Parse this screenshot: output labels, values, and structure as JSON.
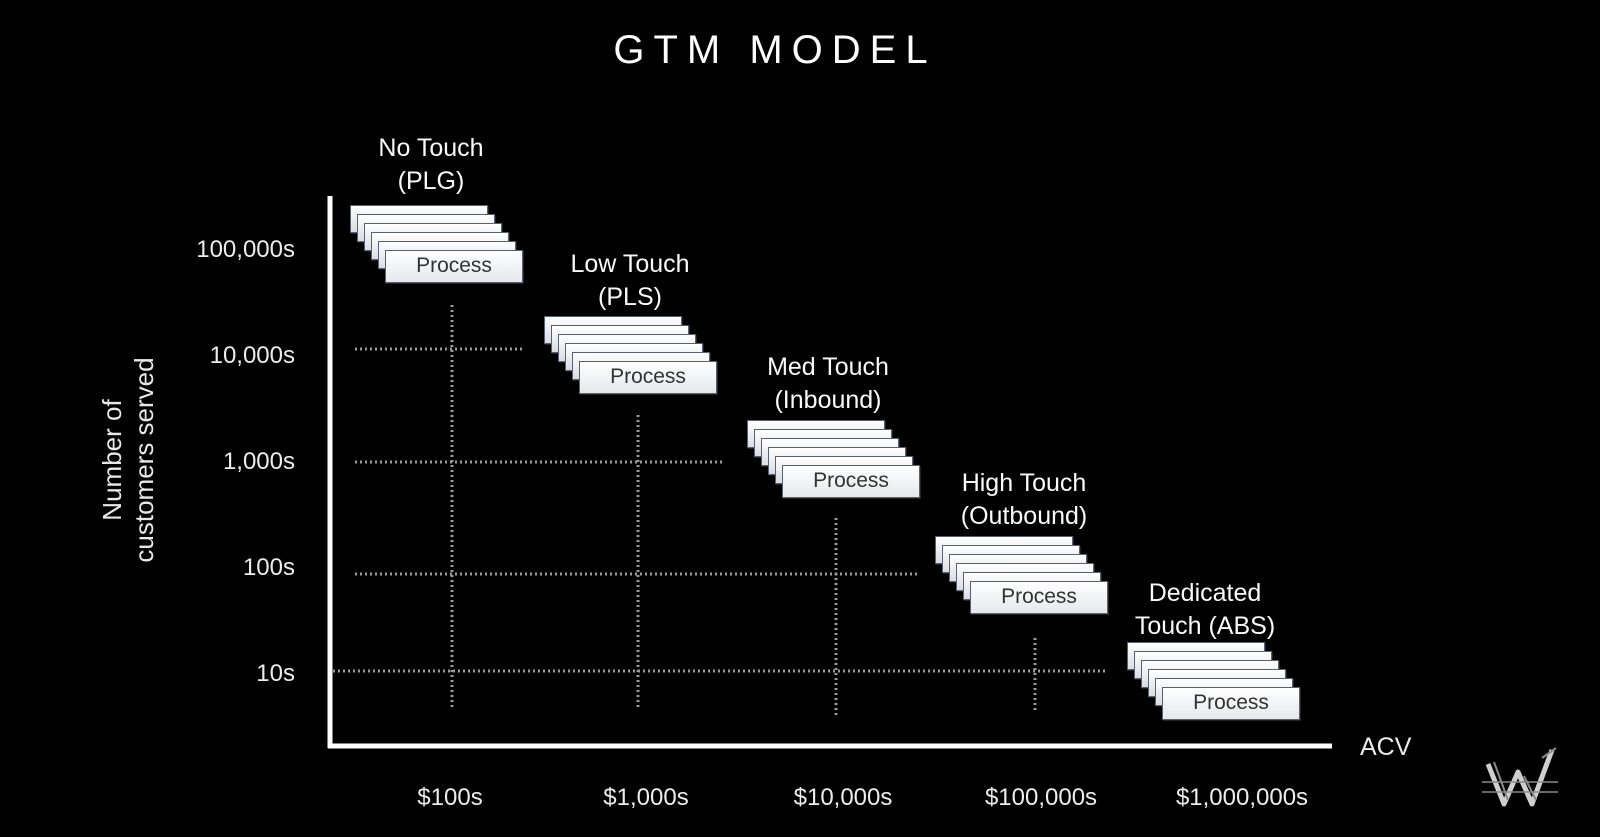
{
  "title": "GTM MODEL",
  "y_axis": {
    "label_line1": "Number of",
    "label_line2": "customers served",
    "ticks": [
      "100,000s",
      "10,000s",
      "1,000s",
      "100s",
      "10s"
    ]
  },
  "x_axis": {
    "label": "ACV",
    "ticks": [
      "$100s",
      "$1,000s",
      "$10,000s",
      "$100,000s",
      "$1,000,000s"
    ]
  },
  "tiers": [
    {
      "line1": "No Touch",
      "line2": "(PLG)",
      "card_label": "Process"
    },
    {
      "line1": "Low Touch",
      "line2": "(PLS)",
      "card_label": "Process"
    },
    {
      "line1": "Med Touch",
      "line2": "(Inbound)",
      "card_label": "Process"
    },
    {
      "line1": "High Touch",
      "line2": "(Outbound)",
      "card_label": "Process"
    },
    {
      "line1": "Dedicated",
      "line2": "Touch (ABS)",
      "card_label": "Process"
    }
  ],
  "colors": {
    "background": "#000000",
    "axis": "#ffffff",
    "grid": "#9a9a9a",
    "card": "#ffffff"
  },
  "logo_icon": "w-monogram-icon"
}
